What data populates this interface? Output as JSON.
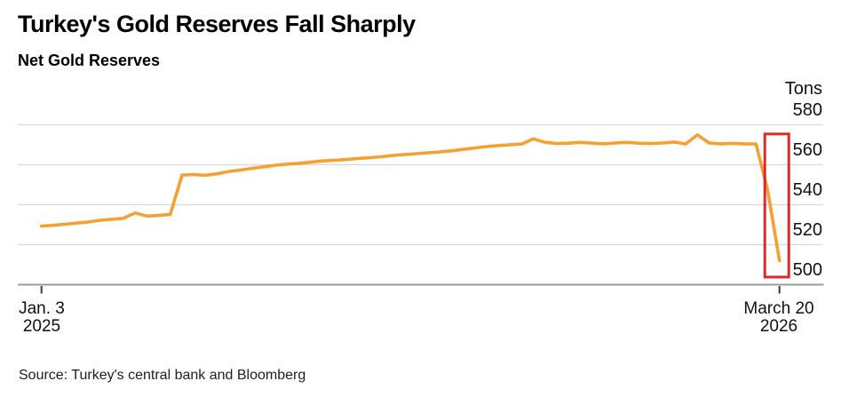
{
  "header": {
    "title": "Turkey's Gold Reserves Fall Sharply",
    "subtitle": "Net Gold Reserves"
  },
  "axis": {
    "unit_label": "Tons",
    "x_ticks": [
      {
        "week_index": 0,
        "line1": "Jan. 3",
        "line2": "2025"
      },
      {
        "week_index": 63,
        "line1": "March 20",
        "line2": "2026"
      }
    ]
  },
  "footer": {
    "source": "Source: Turkey's central bank and Bloomberg"
  },
  "colors": {
    "line": "#F5A030",
    "highlight": "#DA2B27",
    "grid": "#D9D9D9",
    "axis": "#9B9B9B",
    "tick": "#3A3A3A",
    "background": "#FFFFFF"
  },
  "chart_data": {
    "type": "line",
    "title": "Turkey's Gold Reserves Fall Sharply",
    "subtitle": "Net Gold Reserves",
    "ylabel": "Tons",
    "xlabel": "",
    "ylim": [
      500,
      580
    ],
    "y_ticks": [
      580,
      560,
      540,
      520,
      500
    ],
    "grid": "horizontal",
    "legend": "none",
    "x_tick_labels": [
      "Jan. 3 2025",
      "March 20 2026"
    ],
    "series": [
      {
        "name": "Net Gold Reserves",
        "unit": "tons",
        "x_dates": [
          "2025-01-03",
          "2025-01-10",
          "2025-01-17",
          "2025-01-24",
          "2025-01-31",
          "2025-02-07",
          "2025-02-14",
          "2025-02-21",
          "2025-02-28",
          "2025-03-07",
          "2025-03-14",
          "2025-03-21",
          "2025-03-28",
          "2025-04-04",
          "2025-04-11",
          "2025-04-18",
          "2025-04-25",
          "2025-05-02",
          "2025-05-09",
          "2025-05-16",
          "2025-05-23",
          "2025-05-30",
          "2025-06-06",
          "2025-06-13",
          "2025-06-20",
          "2025-06-27",
          "2025-07-04",
          "2025-07-11",
          "2025-07-18",
          "2025-07-25",
          "2025-08-01",
          "2025-08-08",
          "2025-08-15",
          "2025-08-22",
          "2025-08-29",
          "2025-09-05",
          "2025-09-12",
          "2025-09-19",
          "2025-09-26",
          "2025-10-03",
          "2025-10-10",
          "2025-10-17",
          "2025-10-24",
          "2025-10-31",
          "2025-11-07",
          "2025-11-14",
          "2025-11-21",
          "2025-11-28",
          "2025-12-05",
          "2025-12-12",
          "2025-12-19",
          "2025-12-26",
          "2026-01-02",
          "2026-01-09",
          "2026-01-16",
          "2026-01-23",
          "2026-01-30",
          "2026-02-06",
          "2026-02-13",
          "2026-02-20",
          "2026-02-27",
          "2026-03-06",
          "2026-03-13",
          "2026-03-20"
        ],
        "values": [
          529.3,
          529.7,
          530.2,
          530.8,
          531.4,
          532.2,
          532.7,
          533.2,
          535.9,
          534.3,
          534.6,
          535.2,
          554.8,
          555.1,
          554.7,
          555.5,
          556.6,
          557.4,
          558.2,
          559.0,
          559.8,
          560.3,
          560.7,
          561.3,
          561.9,
          562.2,
          562.6,
          563.1,
          563.5,
          564.0,
          564.6,
          565.1,
          565.5,
          566.0,
          566.4,
          567.0,
          567.7,
          568.4,
          569.1,
          569.6,
          570.0,
          570.4,
          573.0,
          571.2,
          570.6,
          570.8,
          571.2,
          570.8,
          570.5,
          570.9,
          571.2,
          570.8,
          570.6,
          570.9,
          571.4,
          570.4,
          575.0,
          570.9,
          570.5,
          570.7,
          570.5,
          570.4,
          547.0,
          512.0
        ]
      }
    ],
    "annotations": [
      {
        "type": "rect",
        "purpose": "highlight-sharp-drop",
        "week_start": 61.75,
        "week_end": 63.8,
        "value_top": 575.4,
        "value_bottom": 503.8,
        "color": "#DA2B27"
      }
    ]
  }
}
